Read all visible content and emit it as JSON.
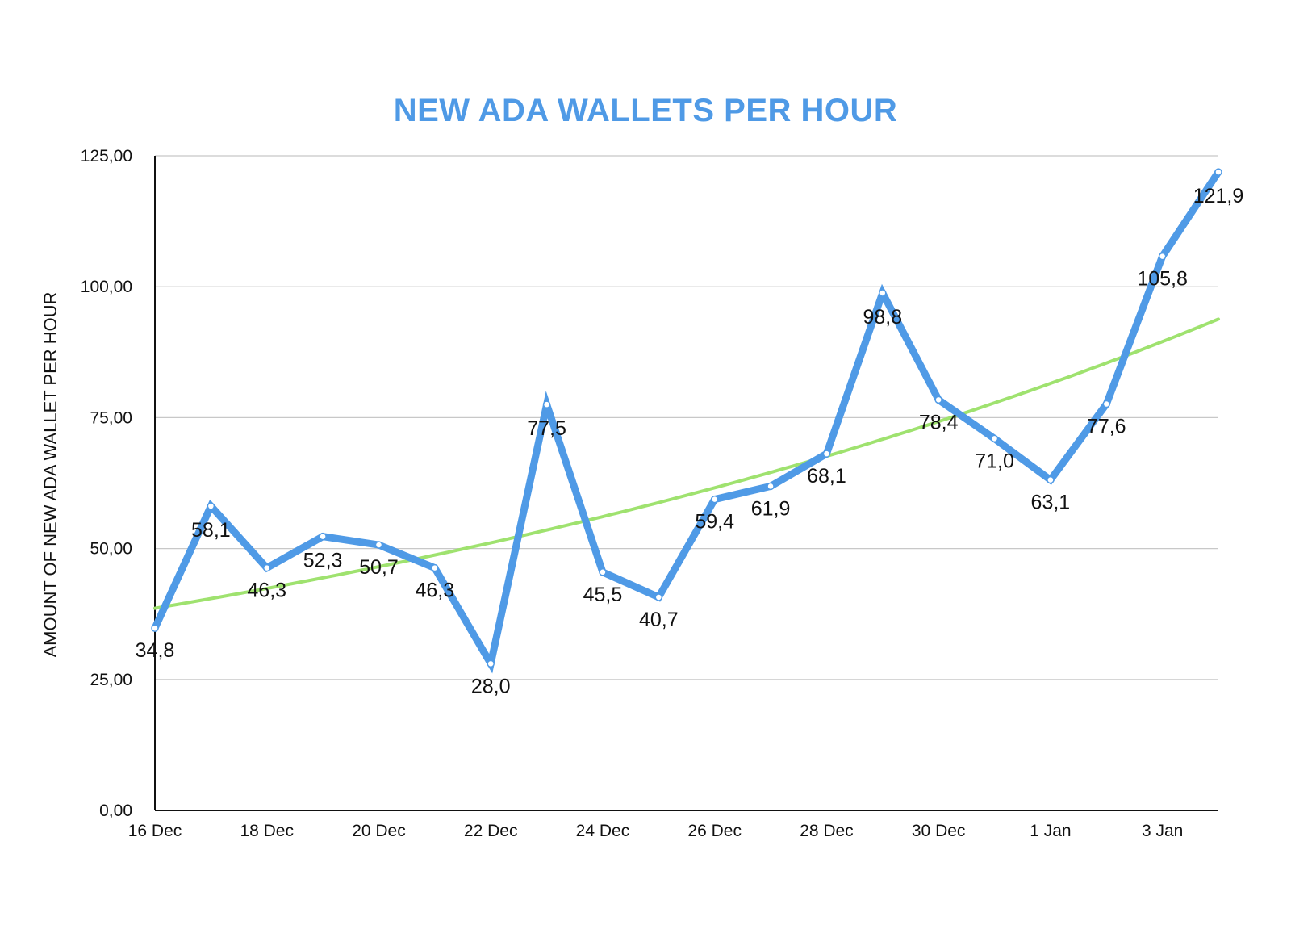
{
  "chart_data": {
    "type": "line",
    "title": "NEW ADA WALLETS PER HOUR",
    "ylabel": "AMOUNT OF NEW ADA WALLET PER HOUR",
    "xlabel": "",
    "ylim": [
      0,
      125
    ],
    "yticks": [
      "0,00",
      "25,00",
      "50,00",
      "75,00",
      "100,00",
      "125,00"
    ],
    "ytick_values": [
      0,
      25,
      50,
      75,
      100,
      125
    ],
    "x": [
      "16 Dec",
      "17 Dec",
      "18 Dec",
      "19 Dec",
      "20 Dec",
      "21 Dec",
      "22 Dec",
      "23 Dec",
      "24 Dec",
      "25 Dec",
      "26 Dec",
      "27 Dec",
      "28 Dec",
      "29 Dec",
      "30 Dec",
      "31 Dec",
      "1 Jan",
      "2 Jan",
      "3 Jan",
      "4 Jan"
    ],
    "xticks": [
      "16 Dec",
      "18 Dec",
      "20 Dec",
      "22 Dec",
      "24 Dec",
      "26 Dec",
      "28 Dec",
      "30 Dec",
      "1 Jan",
      "3 Jan"
    ],
    "values": [
      34.8,
      58.1,
      46.3,
      52.3,
      50.7,
      46.3,
      28.0,
      77.5,
      45.5,
      40.7,
      59.4,
      61.9,
      68.1,
      98.8,
      78.4,
      71.0,
      63.1,
      77.6,
      105.8,
      121.9
    ],
    "data_labels": [
      "34,8",
      "58,1",
      "46,3",
      "52,3",
      "50,7",
      "46,3",
      "28,0",
      "77,5",
      "45,5",
      "40,7",
      "59,4",
      "61,9",
      "68,1",
      "98,8",
      "78,4",
      "71,0",
      "63,1",
      "77,6",
      "105,8",
      "121,9"
    ],
    "trendline": {
      "type": "exponential",
      "start": 38.6,
      "end": 93.8
    },
    "grid": true,
    "legend": "none",
    "colors": {
      "series": "#4f9ae6",
      "trend": "#9fe26f",
      "title": "#4f9ae6"
    }
  }
}
